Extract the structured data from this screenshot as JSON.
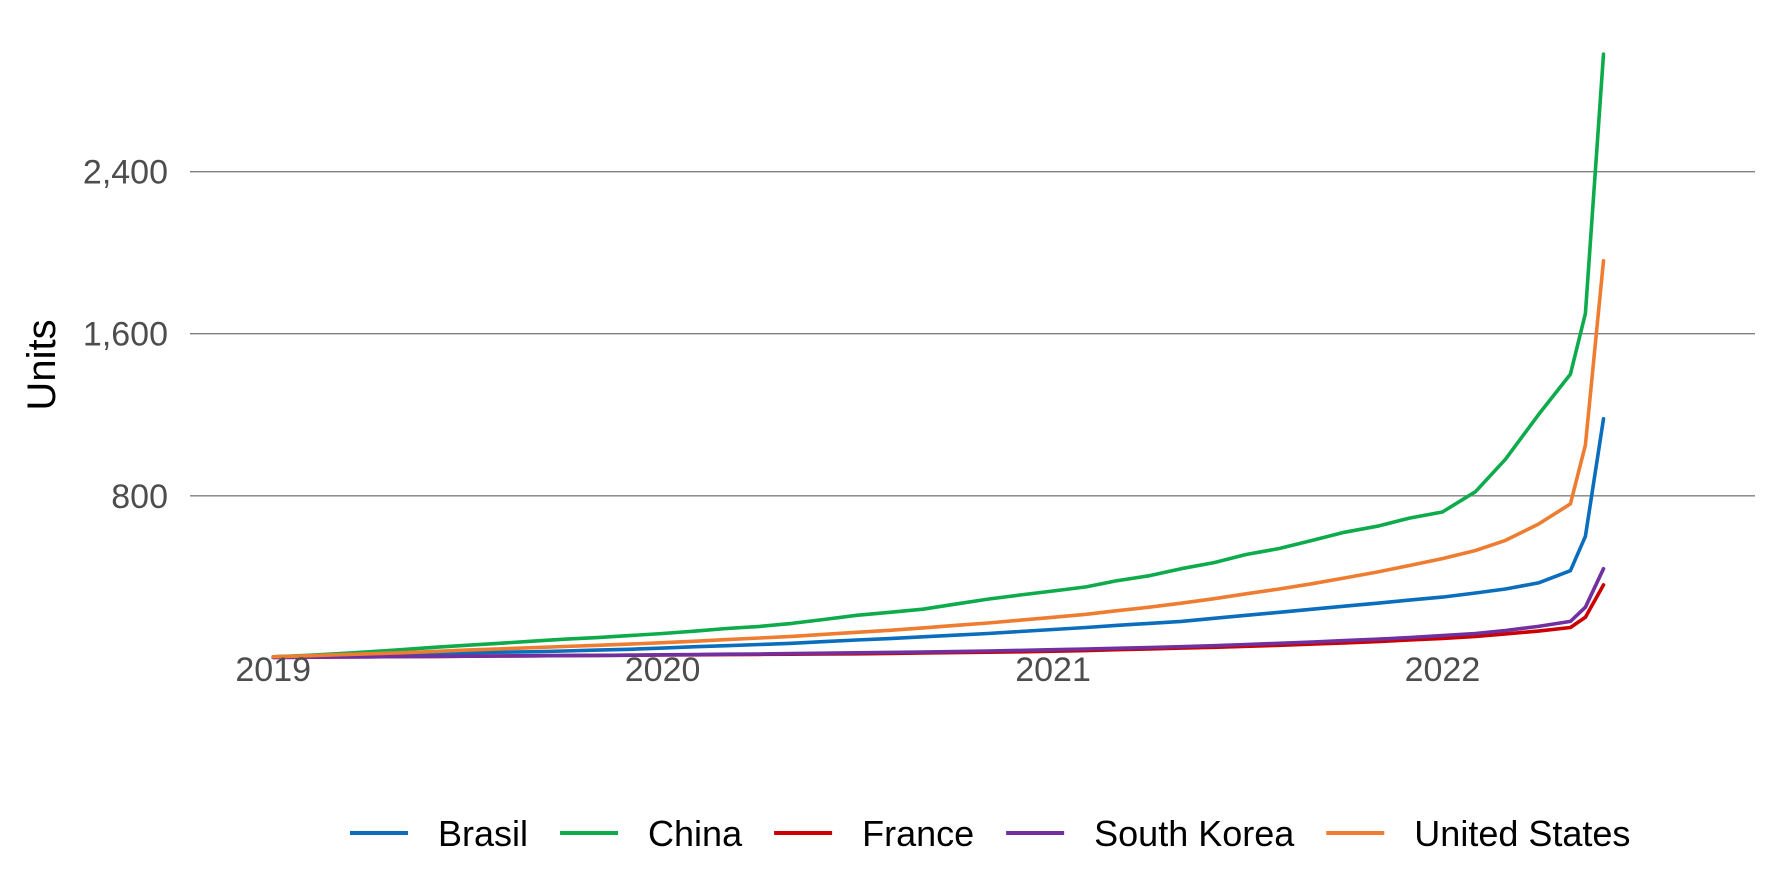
{
  "chart_data": {
    "type": "line",
    "title": "",
    "xlabel": "",
    "ylabel": "Units",
    "x_ticks": [
      "2019",
      "2020",
      "2021",
      "2022"
    ],
    "y_ticks": [
      "800",
      "1,600",
      "2,400"
    ],
    "y_tick_values": [
      800,
      1600,
      2400
    ],
    "ylim": [
      -60,
      3050
    ],
    "xlim": [
      "2018-10-15",
      "2022-10-21"
    ],
    "grid": "horizontal",
    "legend_position": "bottom",
    "x": [
      "2019-01-01",
      "2019-02-01",
      "2019-03-01",
      "2019-04-01",
      "2019-05-01",
      "2019-06-01",
      "2019-07-01",
      "2019-08-01",
      "2019-09-01",
      "2019-10-01",
      "2019-11-01",
      "2019-12-01",
      "2020-01-01",
      "2020-02-01",
      "2020-03-01",
      "2020-04-01",
      "2020-05-01",
      "2020-06-01",
      "2020-07-01",
      "2020-08-01",
      "2020-09-01",
      "2020-10-01",
      "2020-11-01",
      "2020-12-01",
      "2021-01-01",
      "2021-02-01",
      "2021-03-01",
      "2021-04-01",
      "2021-05-01",
      "2021-06-01",
      "2021-07-01",
      "2021-08-01",
      "2021-09-01",
      "2021-10-01",
      "2021-11-01",
      "2021-12-01",
      "2022-01-01",
      "2022-02-01",
      "2022-03-01",
      "2022-04-01",
      "2022-05-01",
      "2022-05-15",
      "2022-06-01"
    ],
    "series": [
      {
        "name": "Brasil",
        "color": "#0a6ebd",
        "values": [
          5,
          8,
          12,
          15,
          18,
          22,
          25,
          28,
          30,
          34,
          38,
          42,
          48,
          55,
          60,
          66,
          72,
          80,
          88,
          95,
          104,
          112,
          120,
          130,
          140,
          150,
          160,
          170,
          180,
          195,
          210,
          225,
          240,
          255,
          270,
          285,
          300,
          320,
          340,
          370,
          430,
          600,
          1180
        ]
      },
      {
        "name": "China",
        "color": "#0eab4c",
        "values": [
          5,
          12,
          20,
          30,
          40,
          52,
          62,
          72,
          82,
          92,
          100,
          110,
          120,
          132,
          145,
          155,
          170,
          190,
          210,
          225,
          240,
          265,
          290,
          310,
          330,
          350,
          380,
          405,
          440,
          470,
          510,
          540,
          580,
          620,
          650,
          690,
          720,
          820,
          980,
          1200,
          1400,
          1700,
          2980
        ]
      },
      {
        "name": "France",
        "color": "#cc0000",
        "values": [
          2,
          3,
          4,
          5,
          6,
          7,
          8,
          9,
          10,
          11,
          12,
          13,
          14,
          15,
          16,
          17,
          18,
          19,
          20,
          22,
          24,
          26,
          28,
          30,
          33,
          36,
          40,
          44,
          48,
          52,
          57,
          62,
          68,
          74,
          80,
          88,
          96,
          106,
          118,
          132,
          150,
          200,
          360
        ]
      },
      {
        "name": "South Korea",
        "color": "#7030a0",
        "values": [
          2,
          3,
          4,
          5,
          6,
          7,
          8,
          9,
          10,
          11,
          12,
          13,
          15,
          16,
          18,
          19,
          21,
          23,
          25,
          27,
          29,
          31,
          34,
          37,
          40,
          43,
          47,
          51,
          55,
          60,
          66,
          72,
          78,
          85,
          92,
          100,
          110,
          120,
          135,
          155,
          180,
          250,
          440
        ]
      },
      {
        "name": "United States",
        "color": "#ee7d31",
        "values": [
          5,
          10,
          15,
          20,
          25,
          32,
          38,
          44,
          50,
          56,
          62,
          68,
          75,
          82,
          90,
          98,
          106,
          116,
          126,
          136,
          148,
          160,
          172,
          186,
          200,
          215,
          232,
          250,
          270,
          292,
          316,
          340,
          366,
          394,
          424,
          456,
          490,
          530,
          580,
          660,
          760,
          1050,
          1960
        ]
      }
    ]
  }
}
